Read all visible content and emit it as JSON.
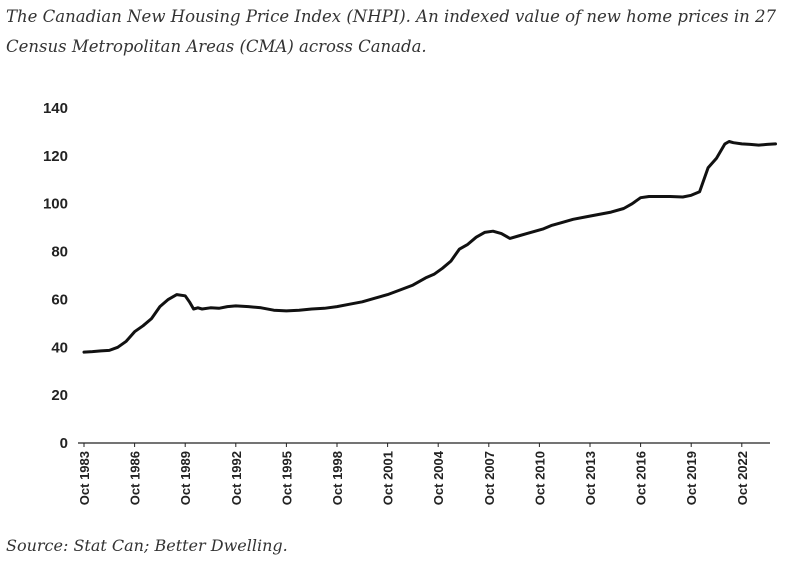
{
  "chart_data": {
    "type": "line",
    "title": "The Canadian New Housing Price Index (NHPI). An indexed value of new home prices in 27 Census Metropolitan Areas (CMA) across Canada.",
    "source": "Source: Stat Can; Better Dwelling.",
    "xlabel": "",
    "ylabel": "",
    "ylim": [
      0,
      140
    ],
    "y_ticks": [
      "0",
      "20",
      "40",
      "60",
      "80",
      "100",
      "120",
      "140"
    ],
    "x_tick_labels": [
      "Oct 1983",
      "Oct 1986",
      "Oct 1989",
      "Oct 1992",
      "Oct 1995",
      "Oct 1998",
      "Oct 2001",
      "Oct 2004",
      "Oct 2007",
      "Oct 2010",
      "Oct 2013",
      "Oct 2016",
      "Oct 2019",
      "Oct 2022"
    ],
    "x_range": [
      1983.75,
      2024.9
    ],
    "grid": false,
    "line_color": "#111111",
    "series": [
      {
        "x": [
          1983.75,
          1984.25,
          1984.75,
          1985.25,
          1985.75,
          1986.25,
          1986.75,
          1987.25,
          1987.75,
          1988.25,
          1988.75,
          1989.25,
          1989.75,
          1990.0,
          1990.25,
          1990.5,
          1990.75,
          1991.25,
          1991.75,
          1992.25,
          1992.75,
          1993.5,
          1994.25,
          1995.0,
          1995.75,
          1996.5,
          1997.25,
          1998.0,
          1998.75,
          1999.5,
          2000.25,
          2001.0,
          2001.75,
          2002.5,
          2003.25,
          2004.0,
          2004.5,
          2005.0,
          2005.5,
          2006.0,
          2006.5,
          2007.0,
          2007.5,
          2008.0,
          2008.5,
          2009.0,
          2009.5,
          2010.0,
          2010.5,
          2011.0,
          2011.5,
          2012.0,
          2012.75,
          2013.5,
          2014.25,
          2015.0,
          2015.75,
          2016.25,
          2016.75,
          2017.25,
          2017.75,
          2018.5,
          2019.25,
          2019.75,
          2020.25,
          2020.75,
          2021.25,
          2021.75,
          2022.0,
          2022.25,
          2022.75,
          2023.25,
          2023.75,
          2024.25,
          2024.75
        ],
        "values": [
          38,
          38.2,
          38.5,
          38.7,
          40,
          42.5,
          46.5,
          49,
          52,
          57,
          60,
          62,
          61.5,
          59,
          56,
          56.5,
          56,
          56.5,
          56.3,
          57,
          57.3,
          57,
          56.5,
          55.5,
          55.2,
          55.5,
          56,
          56.3,
          57,
          58,
          59,
          60.5,
          62,
          64,
          66,
          69,
          70.5,
          73,
          76,
          81,
          83,
          86,
          88,
          88.5,
          87.5,
          85.5,
          86.5,
          87.5,
          88.5,
          89.5,
          91,
          92,
          93.5,
          94.5,
          95.5,
          96.5,
          98,
          100,
          102.5,
          103,
          103,
          103,
          102.8,
          103.5,
          105,
          115,
          119,
          125,
          126,
          125.5,
          125,
          124.8,
          124.5,
          124.8,
          125
        ]
      }
    ]
  }
}
